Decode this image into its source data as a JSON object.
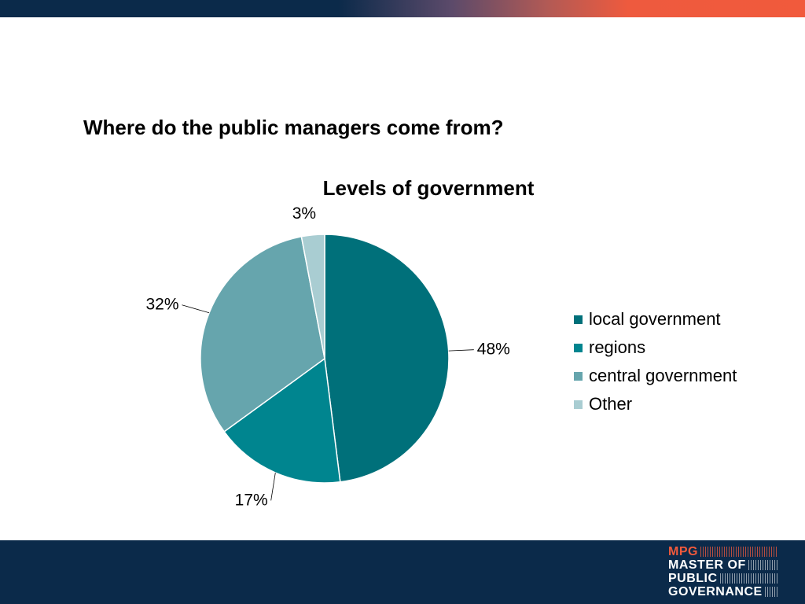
{
  "slide": {
    "title": "Where do the public managers come from?"
  },
  "chart_data": {
    "type": "pie",
    "title": "Levels of government",
    "categories": [
      "local government",
      "regions",
      "central government",
      "Other"
    ],
    "values": [
      48,
      17,
      32,
      3
    ],
    "labels": [
      "48%",
      "17%",
      "32%",
      "3%"
    ],
    "colors": [
      "#00707A",
      "#00858F",
      "#66A5AD",
      "#A9CDD2"
    ],
    "legend": "right"
  },
  "logo": {
    "line1": "MPG",
    "line2": "MASTER OF",
    "line3": "PUBLIC",
    "line4": "GOVERNANCE"
  }
}
